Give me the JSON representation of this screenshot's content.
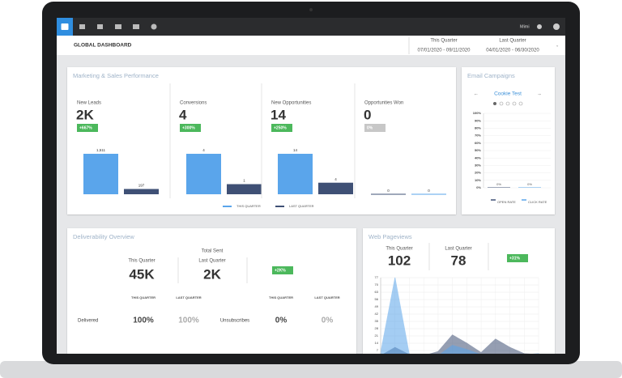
{
  "nav": {
    "user": "Mimi"
  },
  "header": {
    "title": "GLOBAL DASHBOARD",
    "this_quarter": {
      "label": "This Quarter",
      "range": "07/01/2020 - 09/11/2020"
    },
    "last_quarter": {
      "label": "Last Quarter",
      "range": "04/01/2020 - 06/30/2020"
    }
  },
  "marketing": {
    "title": "Marketing & Sales Performance",
    "colors": [
      "#5aa5eb",
      "#3f5075"
    ],
    "legend": [
      "THIS QUARTER",
      "LAST QUARTER"
    ],
    "metrics": [
      {
        "label": "New Leads",
        "value": "2K",
        "change": "+667%",
        "bars": {
          "values": [
            1511,
            197
          ],
          "value_labels": [
            "1,511",
            "197"
          ]
        }
      },
      {
        "label": "Conversions",
        "value": "4",
        "change": "+300%",
        "bars": {
          "values": [
            4,
            1
          ]
        }
      },
      {
        "label": "New Opportunities",
        "value": "14",
        "change": "+250%",
        "bars": {
          "values": [
            14,
            4
          ]
        }
      },
      {
        "label": "Opportunties Won",
        "value": "0",
        "change": "0%",
        "bars": {
          "values": [
            0,
            0
          ]
        }
      }
    ]
  },
  "email": {
    "title": "Email Campaigns",
    "campaign": "Cookie Test",
    "chart": {
      "type": "bar",
      "categories": [
        "OPEN RATE",
        "CLICK RATE"
      ],
      "colors": [
        "#3f5075",
        "#5aa5eb"
      ],
      "values": [
        0,
        0
      ],
      "value_labels": [
        "0%",
        "0%"
      ],
      "ylim": [
        0,
        100
      ],
      "yticks": [
        {
          "value": 0,
          "label": "0%"
        },
        {
          "value": 10,
          "label": "10%"
        },
        {
          "value": 20,
          "label": "20%"
        },
        {
          "value": 30,
          "label": "30%"
        },
        {
          "value": 40,
          "label": "40%"
        },
        {
          "value": 50,
          "label": "50%"
        },
        {
          "value": 60,
          "label": "60%"
        },
        {
          "value": 70,
          "label": "70%"
        },
        {
          "value": 80,
          "label": "80%"
        },
        {
          "value": 90,
          "label": "90%"
        },
        {
          "value": 100,
          "label": "100%"
        }
      ]
    }
  },
  "deliverability": {
    "title": "Deliverability Overview",
    "total_label": "Total Sent",
    "this_label": "This Quarter",
    "last_label": "Last Quarter",
    "this_value": "45K",
    "last_value": "2K",
    "change": "+2K%",
    "table": {
      "headers": [
        "THIS QUARTER",
        "LAST QUARTER",
        "THIS QUARTER",
        "LAST QUARTER"
      ],
      "rows": [
        [
          "Delivered",
          "100%",
          "100%",
          "Unsubscribes",
          "0%",
          "0%"
        ]
      ]
    }
  },
  "pageviews": {
    "title": "Web Pageviews",
    "this_label": "This Quarter",
    "this_value": "102",
    "last_label": "Last Quarter",
    "last_value": "78",
    "change": "+31%",
    "chart": {
      "type": "area",
      "categories": [
        null,
        null,
        null,
        null,
        null,
        null,
        null,
        null,
        null,
        null,
        null,
        null
      ],
      "ylim": [
        0,
        77
      ],
      "yticks": [
        0,
        7,
        14,
        21,
        28,
        35,
        42,
        49,
        56,
        63,
        70,
        77
      ],
      "series": [
        {
          "color": "#3f5075",
          "values": [
            2,
            10,
            3,
            2,
            6,
            22,
            14,
            5,
            18,
            10,
            4,
            3
          ]
        },
        {
          "color": "#5aa5eb",
          "values": [
            5,
            77,
            3,
            2,
            2,
            12,
            8,
            3,
            2,
            2,
            3,
            4
          ]
        }
      ]
    }
  }
}
